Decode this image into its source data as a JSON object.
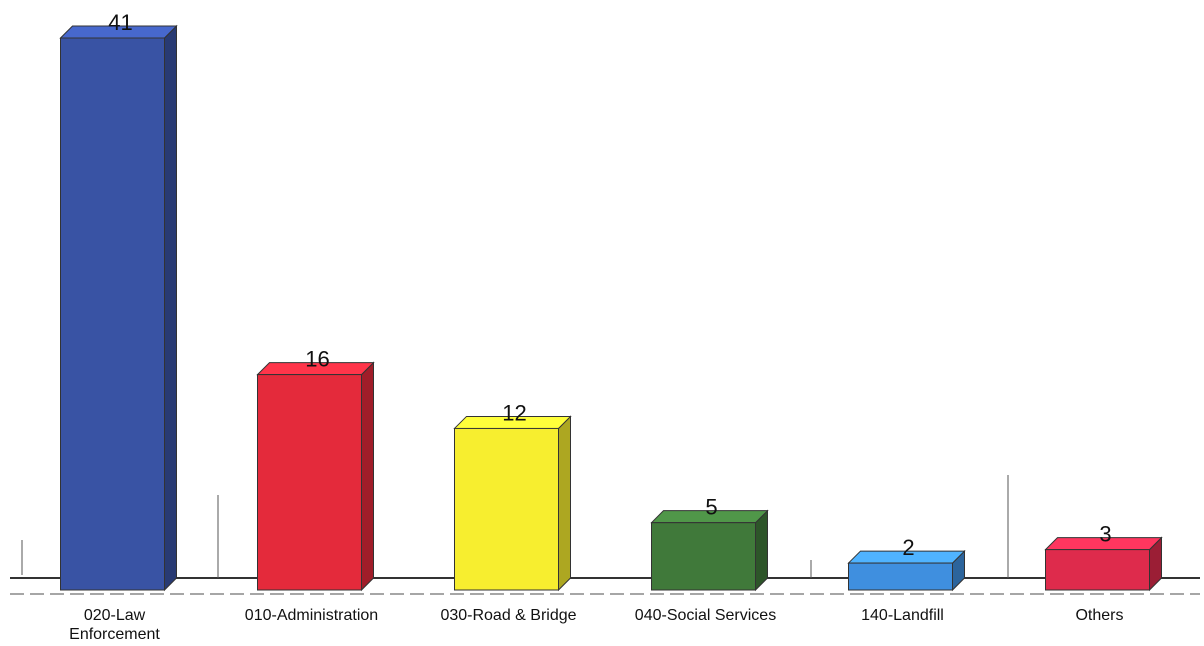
{
  "chart_data": {
    "type": "bar",
    "categories": [
      [
        "020-Law",
        "Enforcement"
      ],
      [
        "010-Administration"
      ],
      [
        "030-Road & Bridge"
      ],
      [
        "040-Social Services"
      ],
      [
        "140-Landfill"
      ],
      [
        "Others"
      ]
    ],
    "values": [
      41,
      16,
      12,
      5,
      2,
      3
    ],
    "value_labels": [
      "41",
      "16",
      "12",
      "5",
      "2",
      "3"
    ],
    "colors": [
      "#3953a4",
      "#e42a3b",
      "#f7ee2f",
      "#40793a",
      "#3f8fdf",
      "#de2b4c"
    ],
    "ylim": [
      0,
      41
    ],
    "title": "",
    "xlabel": "",
    "ylabel": "",
    "grid": false,
    "legend": "none",
    "style": "3d"
  }
}
